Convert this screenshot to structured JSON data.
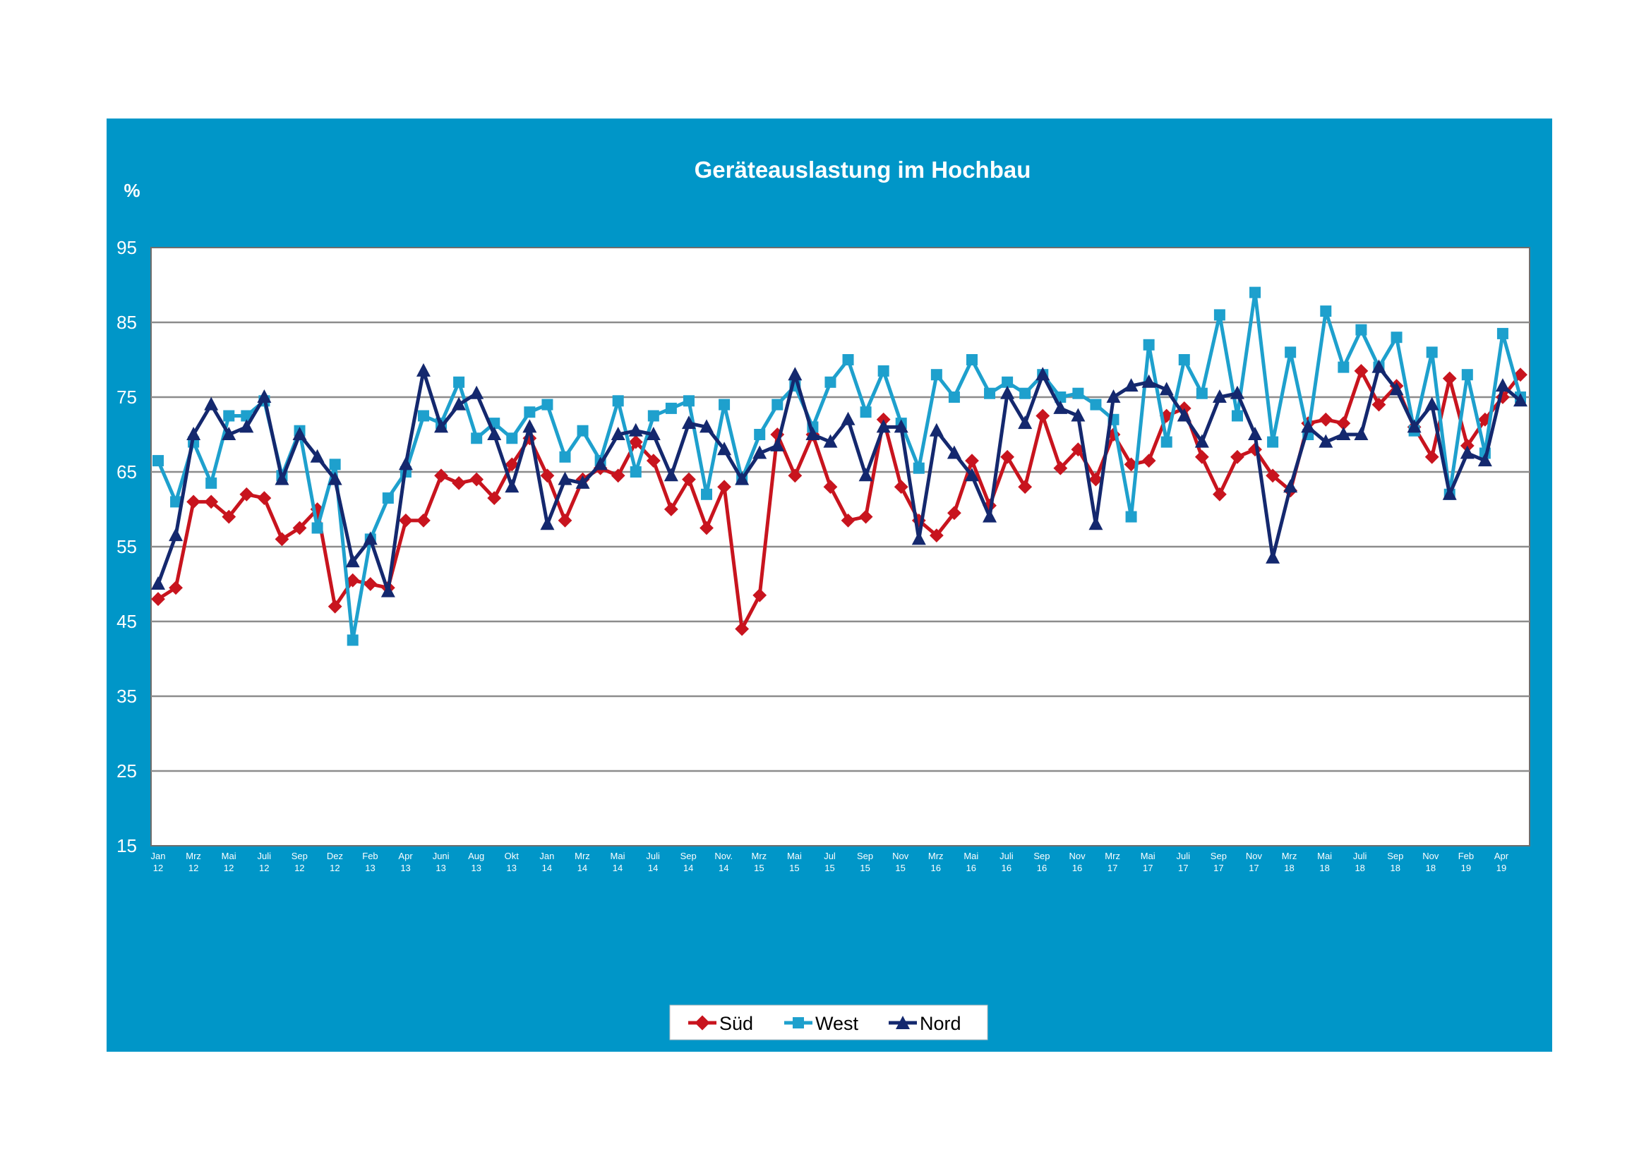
{
  "colors": {
    "panel_background": "#0096c8",
    "plot_background": "#ffffff",
    "gridline": "#8c8c8c",
    "text": "#ffffff",
    "sued": "#c8141e",
    "west": "#1ea0cd",
    "nord": "#14286e"
  },
  "chart_data": {
    "type": "line",
    "title": "Geräteauslastung im Hochbau",
    "ylabel": "%",
    "xlabel": "",
    "ylim": [
      15,
      95
    ],
    "yticks": [
      15,
      25,
      35,
      45,
      55,
      65,
      75,
      85,
      95
    ],
    "grid": true,
    "legend_position": "bottom-center",
    "x_tick_labels": [
      [
        "Jan",
        "12"
      ],
      [
        "Mrz",
        "12"
      ],
      [
        "Mai",
        "12"
      ],
      [
        "Juli",
        "12"
      ],
      [
        "Sep",
        "12"
      ],
      [
        "Dez",
        "12"
      ],
      [
        "Feb",
        "13"
      ],
      [
        "Apr",
        "13"
      ],
      [
        "Juni",
        "13"
      ],
      [
        "Aug",
        "13"
      ],
      [
        "Okt",
        "13"
      ],
      [
        "Jan",
        "14"
      ],
      [
        "Mrz",
        "14"
      ],
      [
        "Mai",
        "14"
      ],
      [
        "Juli",
        "14"
      ],
      [
        "Sep",
        "14"
      ],
      [
        "Nov.",
        "14"
      ],
      [
        "Mrz",
        "15"
      ],
      [
        "Mai",
        "15"
      ],
      [
        "Jul",
        "15"
      ],
      [
        "Sep",
        "15"
      ],
      [
        "Nov",
        "15"
      ],
      [
        "Mrz",
        "16"
      ],
      [
        "Mai",
        "16"
      ],
      [
        "Juli",
        "16"
      ],
      [
        "Sep",
        "16"
      ],
      [
        "Nov",
        "16"
      ],
      [
        "Mrz",
        "17"
      ],
      [
        "Mai",
        "17"
      ],
      [
        "Juli",
        "17"
      ],
      [
        "Sep",
        "17"
      ],
      [
        "Nov",
        "17"
      ],
      [
        "Mrz",
        "18"
      ],
      [
        "Mai",
        "18"
      ],
      [
        "Juli",
        "18"
      ],
      [
        "Sep",
        "18"
      ],
      [
        "Nov",
        "18"
      ],
      [
        "Feb",
        "19"
      ],
      [
        "Apr",
        "19"
      ]
    ],
    "series": [
      {
        "name": "Süd",
        "color": "#c8141e",
        "marker": "diamond",
        "values": [
          48,
          49.5,
          61,
          61,
          59,
          62,
          61.5,
          56,
          57.5,
          60,
          47,
          50.5,
          50,
          49.5,
          58.5,
          58.5,
          64.5,
          63.5,
          64,
          61.5,
          66,
          69.5,
          64.5,
          58.5,
          64,
          65.5,
          64.5,
          69,
          66.5,
          60,
          64,
          57.5,
          63,
          44,
          48.5,
          70,
          64.5,
          70,
          63,
          58.5,
          59,
          72,
          63,
          58.5,
          56.5,
          59.5,
          66.5,
          60.5,
          67,
          63,
          72.5,
          65.5,
          68,
          64,
          70,
          66,
          66.5,
          72.5,
          73.5,
          67,
          62,
          67,
          68,
          64.5,
          62.5,
          71.5,
          72,
          71.5,
          78.5,
          74,
          76.5,
          71,
          67,
          77.5,
          68.5,
          72,
          75,
          78
        ]
      },
      {
        "name": "West",
        "color": "#1ea0cd",
        "marker": "square",
        "values": [
          66.5,
          61,
          69,
          63.5,
          72.5,
          72.5,
          74.5,
          64.5,
          70.5,
          57.5,
          66,
          42.5,
          56,
          61.5,
          65,
          72.5,
          71.5,
          77,
          69.5,
          71.5,
          69.5,
          73,
          74,
          67,
          70.5,
          66.5,
          74.5,
          65,
          72.5,
          73.5,
          74.5,
          62,
          74,
          64,
          70,
          74,
          76.5,
          71,
          77,
          80,
          73,
          78.5,
          71.5,
          65.5,
          78,
          75,
          80,
          75.5,
          77,
          75.5,
          78,
          75,
          75.5,
          74,
          72,
          59,
          82,
          69,
          80,
          75.5,
          86,
          72.5,
          89,
          69,
          81,
          70,
          86.5,
          79,
          84,
          79,
          83,
          70.5,
          81,
          62,
          78,
          67.5,
          83.5,
          75
        ]
      },
      {
        "name": "Nord",
        "color": "#14286e",
        "marker": "triangle",
        "values": [
          50,
          56.5,
          70,
          74,
          70,
          71,
          75,
          64,
          70,
          67,
          64,
          53,
          56,
          49,
          66,
          78.5,
          71,
          74,
          75.5,
          70,
          63,
          71,
          58,
          64,
          63.5,
          66,
          70,
          70.5,
          70,
          64.5,
          71.5,
          71,
          68,
          64,
          67.5,
          68.5,
          78,
          70,
          69,
          72,
          64.5,
          71,
          71,
          56,
          70.5,
          67.5,
          64.5,
          59,
          75.5,
          71.5,
          78,
          73.5,
          72.5,
          58,
          75,
          76.5,
          77,
          76,
          72.5,
          69,
          75,
          75.5,
          70,
          53.5,
          63,
          71,
          69,
          70,
          70,
          79,
          76,
          71,
          74,
          62,
          67.5,
          66.5,
          76.5,
          74.5
        ]
      }
    ]
  }
}
